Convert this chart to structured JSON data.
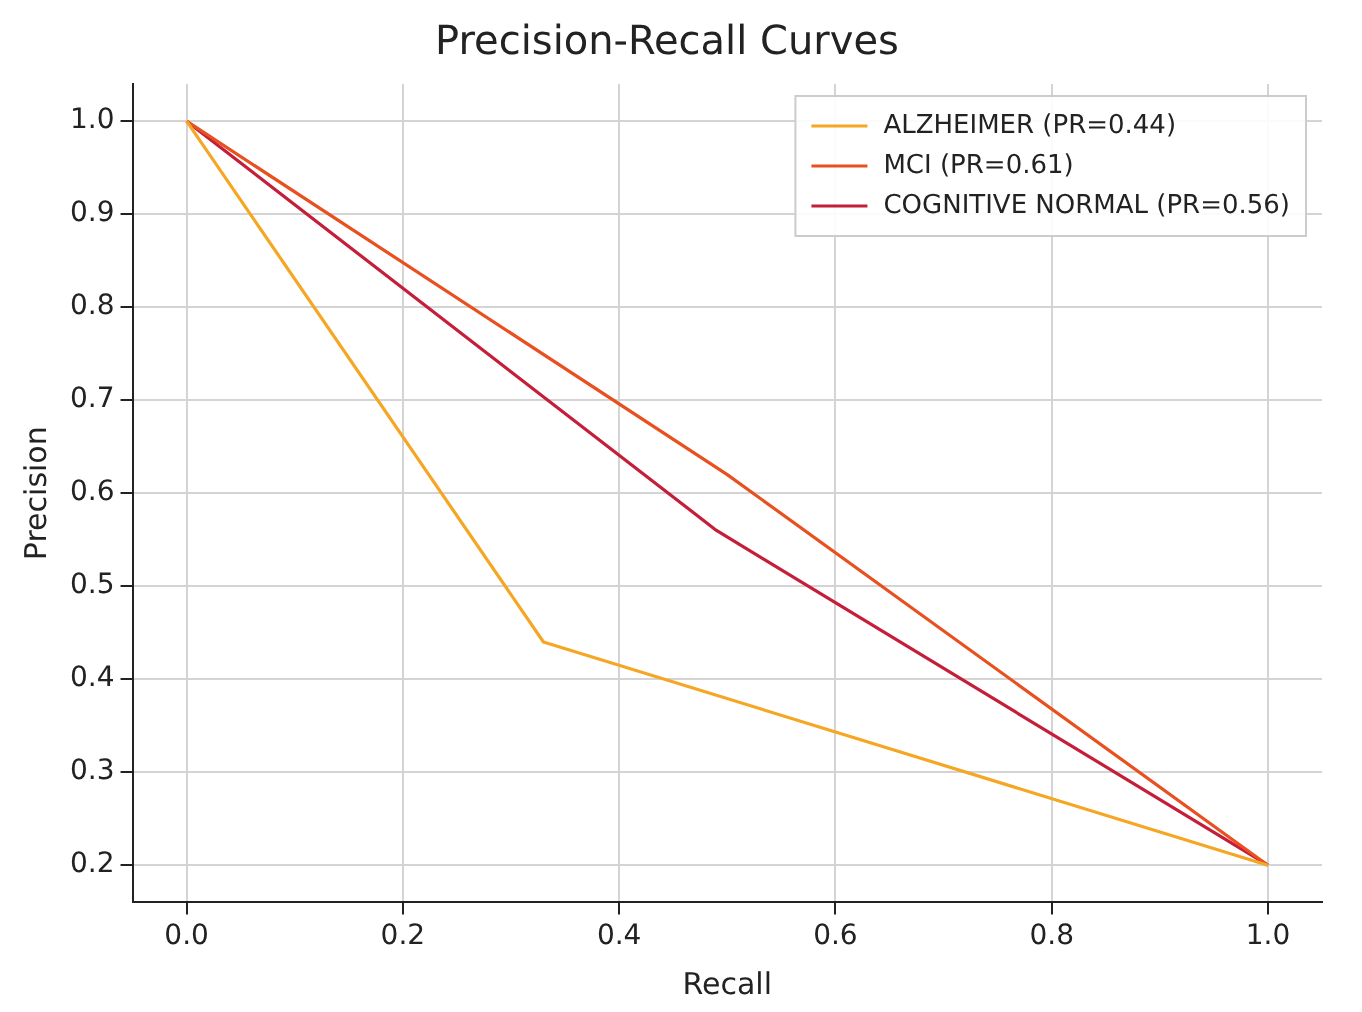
{
  "chart_data": {
    "type": "line",
    "title": "Precision-Recall Curves",
    "xlabel": "Recall",
    "ylabel": "Precision",
    "xlim": [
      -0.05,
      1.05
    ],
    "ylim": [
      0.16,
      1.04
    ],
    "xticks": [
      {
        "value": 0,
        "label": "0.0"
      },
      0.2,
      0.4,
      0.6,
      0.8,
      {
        "value": 1,
        "label": "1.0"
      }
    ],
    "yticks": [
      0.2,
      0.3,
      0.4,
      0.5,
      0.6,
      0.7,
      0.8,
      0.9,
      {
        "value": 1,
        "label": "1.0"
      }
    ],
    "grid": true,
    "legend": "top right",
    "marker": "none",
    "line_style": "solid",
    "series": [
      {
        "name": "ALZHEIMER (PR=0.44)",
        "color": "#f5a623",
        "x": [
          0,
          0.33,
          1
        ],
        "values": [
          1,
          0.44,
          0.2
        ]
      },
      {
        "name": "MCI (PR=0.61)",
        "color": "#e8501f",
        "x": [
          0,
          0.5,
          1
        ],
        "values": [
          1,
          0.62,
          0.2
        ]
      },
      {
        "name": "COGNITIVE NORMAL (PR=0.56)",
        "color": "#c41e3a",
        "x": [
          0,
          0.49,
          1
        ],
        "values": [
          1,
          0.56,
          0.2
        ]
      }
    ]
  }
}
